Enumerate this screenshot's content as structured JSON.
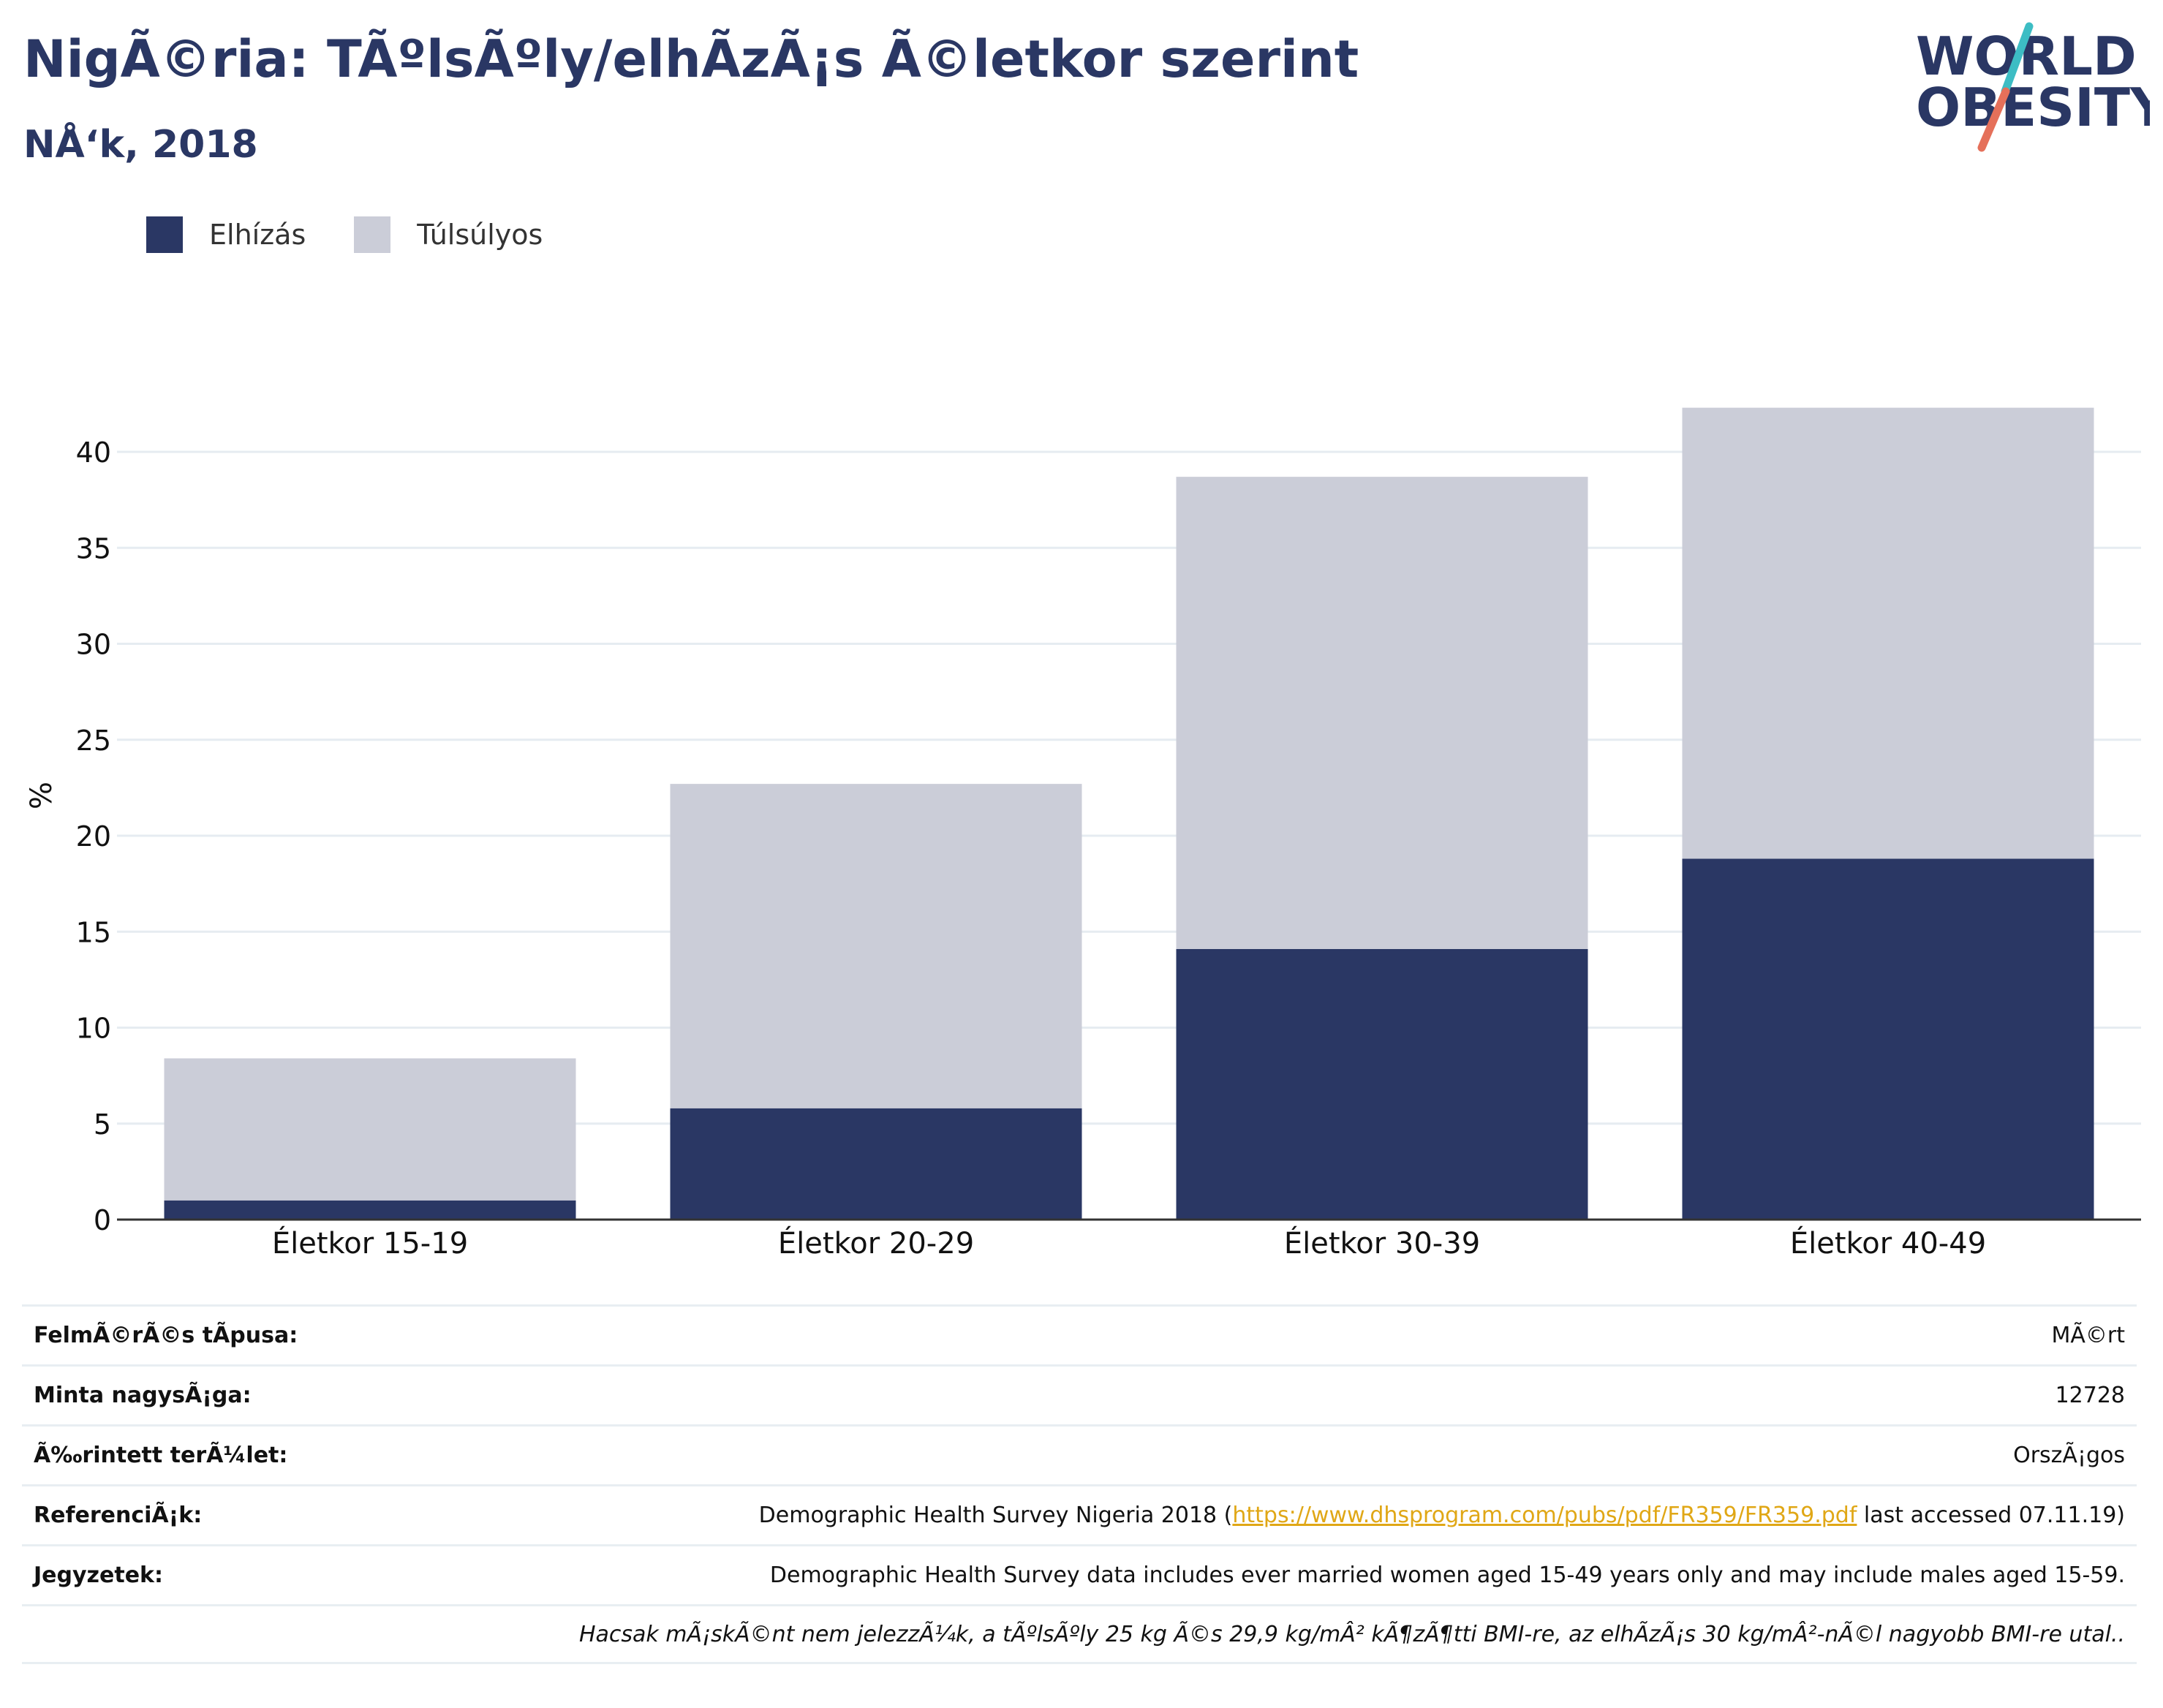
{
  "header": {
    "title": "NigÃ©ria: TÃºlsÃºly/elhÃ­zÃ¡s Ã©letkor szerint",
    "subtitle": "NÅ‘k, 2018"
  },
  "logo": {
    "line1": "WORLD",
    "line2": "OBESITY",
    "accent_teal": "#3dbdc4",
    "accent_coral": "#e5705a"
  },
  "legend": [
    {
      "label": "Elhízás",
      "color": "#2a3764"
    },
    {
      "label": "Túlsúlyos",
      "color": "#cbcdd8"
    }
  ],
  "chart_data": {
    "type": "bar",
    "stacked": true,
    "categories": [
      "Életkor 15-19",
      "Életkor 20-29",
      "Életkor 30-39",
      "Életkor 40-49"
    ],
    "series": [
      {
        "name": "Elhízás",
        "values": [
          1.0,
          5.8,
          14.1,
          18.8
        ],
        "color": "#2a3764"
      },
      {
        "name": "Túlsúlyos",
        "values": [
          7.4,
          16.9,
          24.6,
          23.5
        ],
        "color": "#cbcdd8"
      }
    ],
    "ylabel": "%",
    "ylim": [
      0,
      45
    ],
    "yticks": [
      0,
      5,
      10,
      15,
      20,
      25,
      30,
      35,
      40
    ],
    "grid": true,
    "legend_position": "top-left"
  },
  "info": {
    "survey_type": {
      "label": "FelmÃ©rÃ©s tÃ­pusa:",
      "value": "MÃ©rt"
    },
    "sample_size": {
      "label": "Minta nagysÃ¡ga:",
      "value": "12728"
    },
    "area": {
      "label": "Ã‰rintett terÃ¼let:",
      "value": "OrszÃ¡gos"
    },
    "references": {
      "label": "ReferenciÃ¡k:",
      "prefix": "Demographic Health Survey Nigeria 2018 (",
      "link": "https://www.dhsprogram.com/pubs/pdf/FR359/FR359.pdf",
      "suffix": " last accessed 07.11.19)"
    },
    "notes": {
      "label": "Jegyzetek:",
      "value": "Demographic Health Survey data includes ever married women aged 15-49 years only and may include males aged 15-59."
    },
    "footnote": "Hacsak mÃ¡skÃ©nt nem jelezzÃ¼k, a tÃºlsÃºly 25 kg Ã©s 29,9 kg/mÂ² kÃ¶zÃ¶tti BMI-re, az elhÃ­zÃ¡s 30 kg/mÂ²-nÃ©l nagyobb BMI-re utal.."
  }
}
